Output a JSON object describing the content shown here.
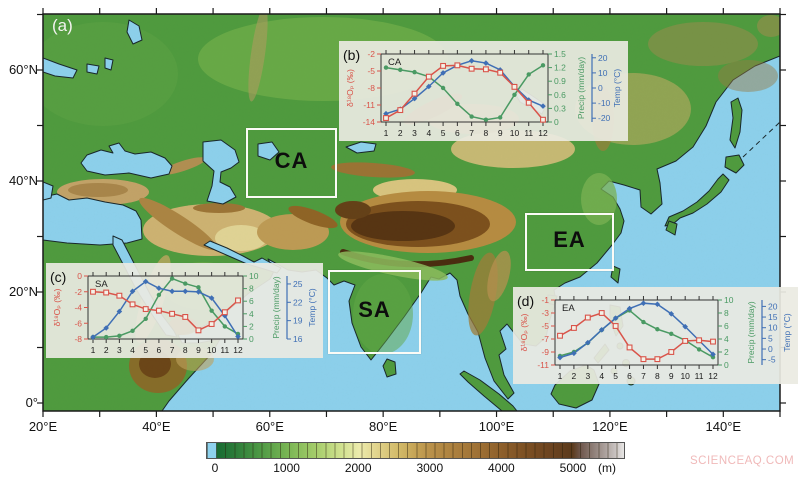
{
  "figure": {
    "panel_label": "(a)",
    "watermark": "SCIENCEAQ.COM"
  },
  "map": {
    "x_ticks": [
      {
        "lon": 20,
        "label": "20°E"
      },
      {
        "lon": 40,
        "label": "40°E"
      },
      {
        "lon": 60,
        "label": "60°E"
      },
      {
        "lon": 80,
        "label": "80°E"
      },
      {
        "lon": 100,
        "label": "100°E"
      },
      {
        "lon": 120,
        "label": "120°E"
      },
      {
        "lon": 140,
        "label": "140°E"
      }
    ],
    "y_ticks": [
      {
        "lat": 60,
        "label": "60°N"
      },
      {
        "lat": 40,
        "label": "40°N"
      },
      {
        "lat": 20,
        "label": "20°N"
      },
      {
        "lat": 0,
        "label": "0°"
      }
    ],
    "regions": [
      {
        "id": "CA",
        "label": "CA"
      },
      {
        "id": "SA",
        "label": "SA"
      },
      {
        "id": "EA",
        "label": "EA"
      }
    ]
  },
  "colorbar": {
    "tick_labels": [
      "0",
      "1000",
      "2000",
      "3000",
      "4000",
      "5000"
    ],
    "unit": "(m)"
  },
  "chart_data": [
    {
      "id": "b",
      "panel": "(b)",
      "region": "CA",
      "type": "line",
      "x_tick_labels": [
        "1",
        "2",
        "3",
        "4",
        "5",
        "6",
        "7",
        "8",
        "9",
        "10",
        "11",
        "12"
      ],
      "axes": {
        "d18o": {
          "label": "δ¹⁸Oₚ (‰)",
          "color": "#d9544a",
          "range": [
            -14,
            -2
          ],
          "ticks": [
            -2,
            -5,
            -8,
            -11,
            -14
          ]
        },
        "precip": {
          "label": "Precip (mm/day)",
          "color": "#4a9a63",
          "range": [
            0,
            1.5
          ],
          "ticks": [
            0,
            0.3,
            0.6,
            0.9,
            1.2,
            1.5
          ]
        },
        "temp": {
          "label": "Temp (°C)",
          "color": "#3f6fb5",
          "range": [
            -22.5,
            22.5
          ],
          "ticks": [
            -20,
            -10,
            0,
            10,
            20
          ]
        }
      },
      "series": {
        "d18o": [
          -13.3,
          -11.9,
          -9.0,
          -6.0,
          -4.1,
          -4.0,
          -4.6,
          -4.7,
          -5.3,
          -7.8,
          -10.6,
          -13.6
        ],
        "precip": [
          1.2,
          1.15,
          1.1,
          1.0,
          0.75,
          0.4,
          0.12,
          0.05,
          0.1,
          0.6,
          1.05,
          1.25
        ],
        "temp": [
          -17,
          -14,
          -7,
          1,
          10,
          15,
          18,
          16.5,
          12,
          1,
          -8,
          -12
        ]
      }
    },
    {
      "id": "c",
      "panel": "(c)",
      "region": "SA",
      "type": "line",
      "x_tick_labels": [
        "1",
        "2",
        "3",
        "4",
        "5",
        "6",
        "7",
        "8",
        "9",
        "10",
        "11",
        "12"
      ],
      "axes": {
        "d18o": {
          "label": "δ¹⁸Oₚ (‰)",
          "color": "#d9544a",
          "range": [
            -8,
            0
          ],
          "ticks": [
            0,
            -2,
            -4,
            -6,
            -8
          ]
        },
        "precip": {
          "label": "Precip (mm/day)",
          "color": "#4a9a63",
          "range": [
            0,
            10
          ],
          "ticks": [
            0,
            2,
            4,
            6,
            8,
            10
          ]
        },
        "temp": {
          "label": "Temp (°C)",
          "color": "#3f6fb5",
          "range": [
            16,
            26.3
          ],
          "ticks": [
            16,
            19,
            22,
            25
          ]
        }
      },
      "series": {
        "d18o": [
          -2.0,
          -2.1,
          -2.5,
          -3.6,
          -4.2,
          -4.4,
          -4.8,
          -5.2,
          -6.9,
          -6.1,
          -4.6,
          -3.1
        ],
        "precip": [
          0.3,
          0.3,
          0.5,
          1.3,
          3.2,
          7.0,
          9.6,
          8.8,
          8.2,
          4.5,
          2.0,
          0.8
        ],
        "temp": [
          16.3,
          17.8,
          20.5,
          23.8,
          25.4,
          24.3,
          23.8,
          23.8,
          23.7,
          22.7,
          19.8,
          16.4
        ]
      }
    },
    {
      "id": "d",
      "panel": "(d)",
      "region": "EA",
      "type": "line",
      "x_tick_labels": [
        "1",
        "2",
        "3",
        "4",
        "5",
        "6",
        "7",
        "8",
        "9",
        "10",
        "11",
        "12"
      ],
      "axes": {
        "d18o": {
          "label": "δ¹⁸Oₚ (‰)",
          "color": "#d9544a",
          "range": [
            -11,
            -1
          ],
          "ticks": [
            -1,
            -3,
            -5,
            -7,
            -9,
            -11
          ]
        },
        "precip": {
          "label": "Precip (mm/day)",
          "color": "#4a9a63",
          "range": [
            0,
            10
          ],
          "ticks": [
            0,
            2,
            4,
            6,
            8,
            10
          ]
        },
        "temp": {
          "label": "Temp (°C)",
          "color": "#3f6fb5",
          "range": [
            -7.5,
            23
          ],
          "ticks": [
            -5,
            0,
            5,
            10,
            15,
            20
          ]
        }
      },
      "series": {
        "d18o": [
          -6.5,
          -5.3,
          -3.7,
          -3.0,
          -5.0,
          -8.3,
          -10.1,
          -10.1,
          -9.0,
          -7.3,
          -7.2,
          -7.4
        ],
        "precip": [
          1.4,
          2.0,
          3.4,
          5.4,
          7.2,
          8.4,
          6.6,
          5.5,
          4.8,
          3.8,
          2.4,
          1.2
        ],
        "temp": [
          -4,
          -2,
          3,
          9,
          14.5,
          19,
          21.5,
          21,
          16.5,
          10.5,
          4,
          -2.5
        ]
      }
    }
  ]
}
